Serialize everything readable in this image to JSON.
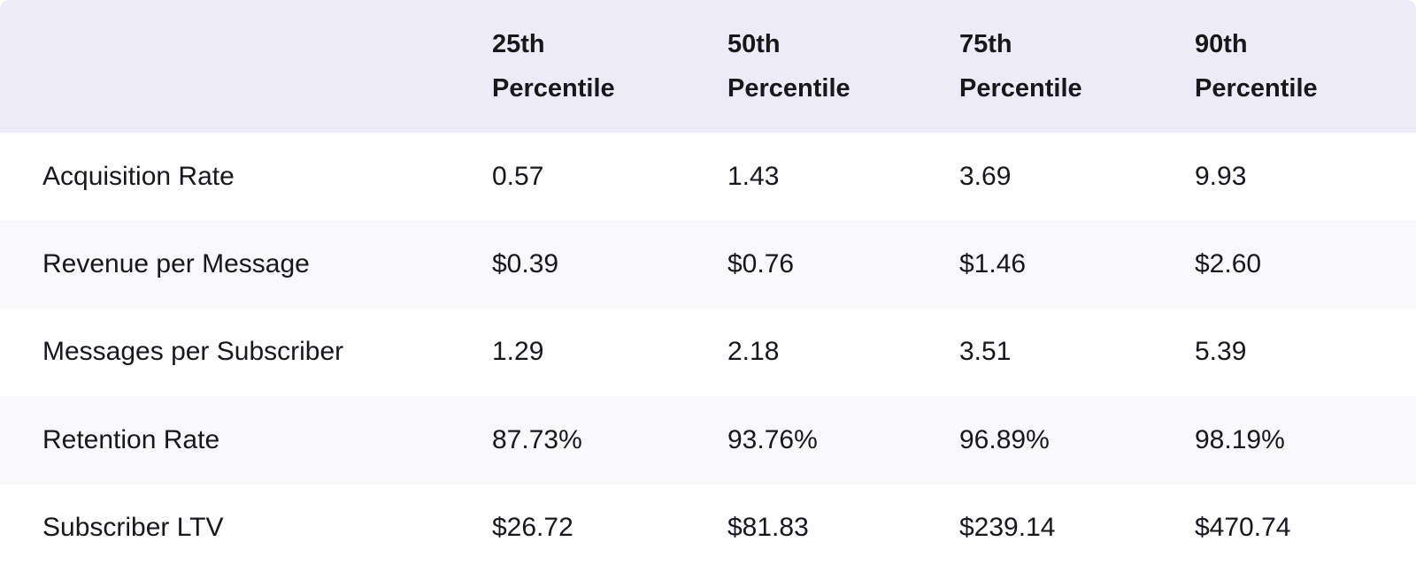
{
  "table": {
    "corner_label": "",
    "columns": [
      "25th Percentile",
      "50th Percentile",
      "75th Percentile",
      "90th Percentile"
    ],
    "rows": [
      {
        "label": "Acquisition Rate",
        "values": [
          "0.57",
          "1.43",
          "3.69",
          "9.93"
        ]
      },
      {
        "label": "Revenue per Message",
        "values": [
          "$0.39",
          "$0.76",
          "$1.46",
          "$2.60"
        ]
      },
      {
        "label": "Messages per Subscriber",
        "values": [
          "1.29",
          "2.18",
          "3.51",
          "5.39"
        ]
      },
      {
        "label": "Retention Rate",
        "values": [
          "87.73%",
          "93.76%",
          "96.89%",
          "98.19%"
        ]
      },
      {
        "label": "Subscriber LTV",
        "values": [
          "$26.72",
          "$81.83",
          "$239.14",
          "$470.74"
        ]
      }
    ],
    "colors": {
      "header_bg": "#EDEBF5",
      "stripe_bg": "#F9F9FB",
      "row_bg": "#FFFFFF",
      "text": "#17171C"
    }
  },
  "chart_data": {
    "type": "table",
    "title": "",
    "columns": [
      "",
      "25th Percentile",
      "50th Percentile",
      "75th Percentile",
      "90th Percentile"
    ],
    "rows": [
      [
        "Acquisition Rate",
        "0.57",
        "1.43",
        "3.69",
        "9.93"
      ],
      [
        "Revenue per Message",
        "$0.39",
        "$0.76",
        "$1.46",
        "$2.60"
      ],
      [
        "Messages per Subscriber",
        "1.29",
        "2.18",
        "3.51",
        "5.39"
      ],
      [
        "Retention Rate",
        "87.73%",
        "93.76%",
        "96.89%",
        "98.19%"
      ],
      [
        "Subscriber LTV",
        "$26.72",
        "$81.83",
        "$239.14",
        "$470.74"
      ]
    ],
    "layout": {
      "header_background": "#EDEBF5",
      "alternating_row_background": "#F9F9FB",
      "grid": false
    }
  }
}
